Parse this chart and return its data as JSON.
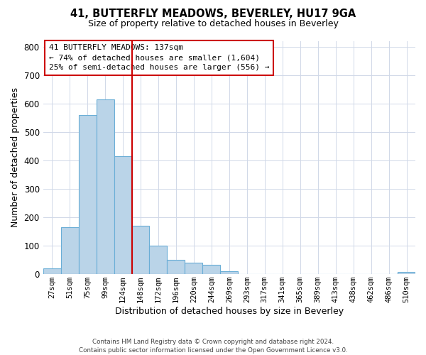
{
  "title": "41, BUTTERFLY MEADOWS, BEVERLEY, HU17 9GA",
  "subtitle": "Size of property relative to detached houses in Beverley",
  "xlabel": "Distribution of detached houses by size in Beverley",
  "ylabel": "Number of detached properties",
  "bar_labels": [
    "27sqm",
    "51sqm",
    "75sqm",
    "99sqm",
    "124sqm",
    "148sqm",
    "172sqm",
    "196sqm",
    "220sqm",
    "244sqm",
    "269sqm",
    "293sqm",
    "317sqm",
    "341sqm",
    "365sqm",
    "389sqm",
    "413sqm",
    "438sqm",
    "462sqm",
    "486sqm",
    "510sqm"
  ],
  "bar_values": [
    20,
    165,
    560,
    615,
    415,
    170,
    100,
    50,
    40,
    33,
    10,
    0,
    0,
    0,
    0,
    0,
    0,
    0,
    0,
    0,
    8
  ],
  "bar_color": "#bad4e8",
  "bar_edge_color": "#6aaed6",
  "vline_x": 4.5,
  "vline_color": "#cc0000",
  "ylim": [
    0,
    820
  ],
  "yticks": [
    0,
    100,
    200,
    300,
    400,
    500,
    600,
    700,
    800
  ],
  "annotation_line1": "41 BUTTERFLY MEADOWS: 137sqm",
  "annotation_line2": "← 74% of detached houses are smaller (1,604)",
  "annotation_line3": "25% of semi-detached houses are larger (556) →",
  "footer": "Contains HM Land Registry data © Crown copyright and database right 2024.\nContains public sector information licensed under the Open Government Licence v3.0.",
  "background_color": "#ffffff",
  "grid_color": "#d0d8e8"
}
